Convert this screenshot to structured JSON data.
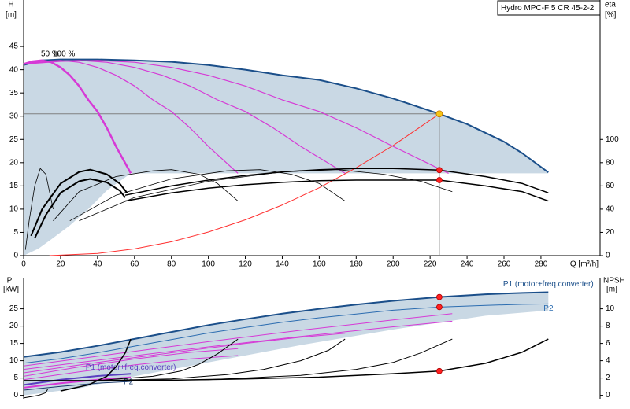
{
  "chart_data": [
    {
      "type": "line",
      "title": "Hydro MPC-F 5 CR 45-2-2",
      "y_label": "H",
      "y_unit": "[m]",
      "y2_label": "eta",
      "y2_unit": "[%]",
      "x_label": "Q [m³/h]",
      "annotations": [
        "50 %",
        "100 %"
      ],
      "xlim": [
        0,
        312
      ],
      "xticks": [
        0,
        20,
        40,
        60,
        80,
        100,
        120,
        140,
        160,
        180,
        200,
        220,
        240,
        260,
        280
      ],
      "ylim": [
        0,
        55
      ],
      "yticks": [
        0,
        5,
        10,
        15,
        20,
        25,
        30,
        35,
        40,
        45
      ],
      "y2lim": [
        0,
        220
      ],
      "y2ticks": [
        0,
        20,
        40,
        60,
        80,
        100
      ],
      "areas": [
        {
          "color": "#c9d8e4",
          "x": [
            0,
            10,
            20,
            40,
            60,
            80,
            100,
            120,
            140,
            160,
            180,
            200,
            225,
            240,
            260,
            270,
            284,
            284,
            58,
            45,
            35,
            25,
            15,
            8,
            0
          ],
          "values": [
            41,
            42,
            42.2,
            42.2,
            42,
            41.7,
            41,
            40,
            38.8,
            37.8,
            36,
            33.8,
            30.5,
            28.3,
            24.5,
            22,
            17.9,
            17.7,
            17.7,
            14,
            10,
            6.5,
            3.5,
            1.5,
            0
          ]
        }
      ],
      "series": [
        {
          "color": "#1b4f8a",
          "linewidth": 2,
          "x": [
            0,
            10,
            20,
            40,
            60,
            80,
            100,
            120,
            140,
            160,
            180,
            200,
            225,
            240,
            260,
            270,
            284
          ],
          "values": [
            41,
            42,
            42.2,
            42.2,
            42,
            41.7,
            41,
            40,
            38.8,
            37.8,
            36,
            33.8,
            30.5,
            28.3,
            24.5,
            22,
            17.9
          ]
        },
        {
          "color": "#d63ad6",
          "linewidth": 2.5,
          "x": [
            0,
            5,
            10,
            15,
            20,
            25,
            30,
            35,
            40,
            45,
            50,
            58
          ],
          "values": [
            41.2,
            41.8,
            42,
            41.6,
            40.5,
            38.8,
            36.5,
            33.5,
            31,
            27.5,
            23.5,
            17.7
          ]
        },
        {
          "color": "#d63ad6",
          "linewidth": 1.2,
          "x": [
            0,
            10,
            20,
            30,
            40,
            50,
            60,
            70,
            80,
            90,
            100,
            116
          ],
          "values": [
            41.2,
            41.8,
            42,
            41.6,
            40.5,
            38.8,
            36.5,
            33.5,
            31,
            27.5,
            23.5,
            17.7
          ]
        },
        {
          "color": "#d63ad6",
          "linewidth": 1.2,
          "x": [
            0,
            15,
            30,
            45,
            60,
            75,
            90,
            105,
            120,
            135,
            150,
            174
          ],
          "values": [
            41.2,
            41.8,
            42,
            41.6,
            40.5,
            38.8,
            36.5,
            33.5,
            31,
            27.5,
            23.5,
            17.7
          ]
        },
        {
          "color": "#d63ad6",
          "linewidth": 1.2,
          "x": [
            0,
            20,
            40,
            60,
            80,
            100,
            120,
            140,
            160,
            180,
            200,
            230
          ],
          "values": [
            41.2,
            41.8,
            42,
            41.6,
            40.5,
            38.8,
            36.5,
            33.5,
            31,
            27.5,
            23.5,
            17.7
          ]
        },
        {
          "color": "#ff3030",
          "linewidth": 1,
          "x": [
            14,
            40,
            60,
            80,
            100,
            120,
            140,
            160,
            180,
            200,
            225
          ],
          "values": [
            0,
            0.46,
            1.45,
            2.98,
            5.07,
            7.7,
            10.9,
            14.6,
            18.9,
            23.7,
            30.5
          ]
        },
        {
          "color": "#000000",
          "linewidth": 2,
          "axis": "y2",
          "x": [
            4,
            10,
            20,
            30,
            36,
            45,
            52,
            56
          ],
          "values": [
            17,
            40,
            62,
            72,
            74,
            70,
            62,
            54
          ]
        },
        {
          "color": "#000000",
          "linewidth": 2,
          "axis": "y2",
          "x": [
            6,
            12,
            20,
            30,
            36,
            45,
            52,
            55
          ],
          "values": [
            15,
            35,
            54,
            64,
            66,
            63,
            56,
            50
          ]
        },
        {
          "color": "#000000",
          "linewidth": 0.8,
          "axis": "y2",
          "x": [
            16,
            30,
            50,
            70,
            80,
            95,
            105,
            116
          ],
          "values": [
            30,
            55,
            68,
            73,
            74,
            70,
            62,
            47
          ]
        },
        {
          "color": "#000000",
          "linewidth": 0.8,
          "axis": "y2",
          "x": [
            25,
            50,
            80,
            110,
            128,
            145,
            160,
            174
          ],
          "values": [
            30,
            52,
            66,
            73,
            74,
            70,
            62,
            47
          ]
        },
        {
          "color": "#000000",
          "linewidth": 0.8,
          "axis": "y2",
          "x": [
            30,
            60,
            100,
            140,
            170,
            195,
            215,
            232
          ],
          "values": [
            30,
            50,
            64,
            72,
            74,
            70,
            64,
            55
          ]
        },
        {
          "color": "#000000",
          "linewidth": 0.8,
          "axis": "y2",
          "x": [
            1,
            3,
            6,
            9,
            12,
            16
          ],
          "values": [
            5,
            30,
            60,
            75,
            70,
            40
          ]
        },
        {
          "color": "#000000",
          "linewidth": 1.5,
          "axis": "y2",
          "x": [
            55,
            80,
            100,
            120,
            140,
            160,
            180,
            200,
            225,
            250,
            270,
            284
          ],
          "values": [
            52,
            60,
            65,
            69,
            72,
            74,
            75,
            75,
            73.6,
            68,
            62,
            54
          ]
        },
        {
          "color": "#000000",
          "linewidth": 1.5,
          "axis": "y2",
          "x": [
            55,
            80,
            100,
            120,
            140,
            160,
            180,
            200,
            225,
            250,
            270,
            284
          ],
          "values": [
            47,
            54,
            58,
            61,
            63,
            64.5,
            65,
            65,
            65,
            60,
            55,
            47
          ]
        }
      ],
      "points": [
        {
          "x": 225,
          "y": 30.5,
          "color": "#f5c518",
          "guides": true
        },
        {
          "x": 225,
          "y": 73.6,
          "color": "#ff2020",
          "axis": "y2"
        },
        {
          "x": 225,
          "y": 65,
          "color": "#ff2020",
          "axis": "y2"
        }
      ]
    },
    {
      "type": "line",
      "y_label": "P",
      "y_unit": "[kW]",
      "y2_label": "NPSH",
      "y2_unit": "[m]",
      "xlim": [
        0,
        312
      ],
      "ylim": [
        -1,
        34
      ],
      "yticks": [
        0,
        5,
        10,
        15,
        20,
        25
      ],
      "y2lim": [
        -0.4,
        13.6
      ],
      "y2ticks": [
        0,
        2,
        4,
        6,
        8,
        10
      ],
      "areas": [
        {
          "color": "#c9d8e4",
          "x": [
            0,
            20,
            40,
            60,
            80,
            100,
            120,
            140,
            160,
            180,
            200,
            225,
            250,
            270,
            284,
            284,
            250,
            200,
            150,
            100,
            60,
            30,
            0
          ],
          "values": [
            11.1,
            12.5,
            14.3,
            16.3,
            18.3,
            20.3,
            22,
            23.6,
            25,
            26.2,
            27.3,
            28.4,
            29.2,
            29.6,
            29.8,
            24.5,
            23,
            19,
            14.5,
            9.5,
            5.5,
            2,
            0
          ]
        }
      ],
      "series": [
        {
          "color": "#1b4f8a",
          "linewidth": 2,
          "label": "P1 (motor+freq.converter)",
          "x": [
            0,
            20,
            40,
            60,
            80,
            100,
            120,
            140,
            160,
            180,
            200,
            225,
            250,
            270,
            284
          ],
          "values": [
            11.1,
            12.5,
            14.3,
            16.3,
            18.3,
            20.3,
            22,
            23.6,
            25,
            26.2,
            27.3,
            28.4,
            29.2,
            29.6,
            29.8
          ]
        },
        {
          "color": "#2b6cb0",
          "linewidth": 1,
          "label": "P2",
          "x": [
            0,
            20,
            40,
            60,
            80,
            100,
            120,
            140,
            160,
            180,
            200,
            225,
            250,
            270,
            284
          ],
          "values": [
            9.3,
            10.6,
            12.3,
            14.2,
            16.1,
            18,
            19.6,
            21.1,
            22.4,
            23.5,
            24.6,
            25.5,
            26,
            26.3,
            26.4
          ]
        },
        {
          "color": "#d63ad6",
          "linewidth": 1,
          "x": [
            0,
            50,
            100,
            150,
            200,
            232
          ],
          "values": [
            8.5,
            12,
            15.5,
            18.8,
            21.8,
            23.6
          ]
        },
        {
          "color": "#d63ad6",
          "linewidth": 1,
          "x": [
            0,
            50,
            100,
            150,
            200,
            232
          ],
          "values": [
            7.5,
            10.8,
            14,
            17,
            19.8,
            21.4
          ]
        },
        {
          "color": "#d63ad6",
          "linewidth": 1,
          "x": [
            0,
            40,
            80,
            120,
            150,
            174
          ],
          "values": [
            6.5,
            9.5,
            12.3,
            15,
            16.8,
            17.9
          ]
        },
        {
          "color": "#d63ad6",
          "linewidth": 1,
          "x": [
            0,
            30,
            60,
            90,
            116
          ],
          "values": [
            5.5,
            8.2,
            10.5,
            12.4,
            13.5
          ]
        },
        {
          "color": "#d63ad6",
          "linewidth": 1,
          "x": [
            0,
            30,
            60,
            90,
            116
          ],
          "values": [
            4.5,
            6.8,
            8.8,
            10.5,
            11.5
          ]
        },
        {
          "color": "#5a3fc0",
          "linewidth": 2,
          "label": "P1 (motor+freq.converter)",
          "x": [
            0,
            20,
            40,
            58
          ],
          "values": [
            3,
            4.5,
            5.6,
            6.2
          ]
        },
        {
          "color": "#d63ad6",
          "linewidth": 2,
          "x": [
            0,
            20,
            40,
            58
          ],
          "values": [
            2.2,
            3.5,
            4.5,
            5.2
          ]
        },
        {
          "color": "#1b3a6a",
          "linewidth": 1,
          "label": "P2",
          "x": [
            0,
            20,
            40,
            58
          ],
          "values": [
            1.5,
            2.6,
            3.5,
            4
          ]
        },
        {
          "color": "#000000",
          "linewidth": 1.5,
          "axis": "y2",
          "x": [
            0,
            40,
            80,
            120,
            160,
            200,
            225,
            250,
            270,
            284
          ],
          "values": [
            1.7,
            1.7,
            1.75,
            1.9,
            2.1,
            2.5,
            2.8,
            3.7,
            5,
            6.5
          ]
        },
        {
          "color": "#000000",
          "linewidth": 1,
          "axis": "y2",
          "x": [
            40,
            100,
            150,
            180,
            200,
            215,
            232
          ],
          "values": [
            1.7,
            1.8,
            2.3,
            3,
            3.8,
            4.9,
            6.5
          ]
        },
        {
          "color": "#000000",
          "linewidth": 1,
          "axis": "y2",
          "x": [
            40,
            80,
            110,
            130,
            150,
            165,
            174
          ],
          "values": [
            1.7,
            1.9,
            2.4,
            3,
            4,
            5.2,
            6.5
          ]
        },
        {
          "color": "#000000",
          "linewidth": 1,
          "axis": "y2",
          "x": [
            40,
            70,
            85,
            95,
            105,
            116
          ],
          "values": [
            1.7,
            2.2,
            2.8,
            3.6,
            4.8,
            6.5
          ]
        },
        {
          "color": "#000000",
          "linewidth": 1.5,
          "axis": "y2",
          "x": [
            20,
            35,
            45,
            50,
            55,
            58
          ],
          "values": [
            0.5,
            1.2,
            2.2,
            3.3,
            4.9,
            6.5
          ]
        },
        {
          "color": "#000000",
          "linewidth": 1,
          "axis": "y2",
          "x": [
            0,
            8,
            12,
            13
          ],
          "values": [
            -0.3,
            0,
            0.3,
            0.7
          ]
        }
      ],
      "points": [
        {
          "x": 225,
          "y": 28.4,
          "color": "#ff2020"
        },
        {
          "x": 225,
          "y": 25.5,
          "color": "#ff2020"
        },
        {
          "x": 225,
          "y": 2.8,
          "color": "#ff2020",
          "axis": "y2"
        }
      ]
    }
  ]
}
